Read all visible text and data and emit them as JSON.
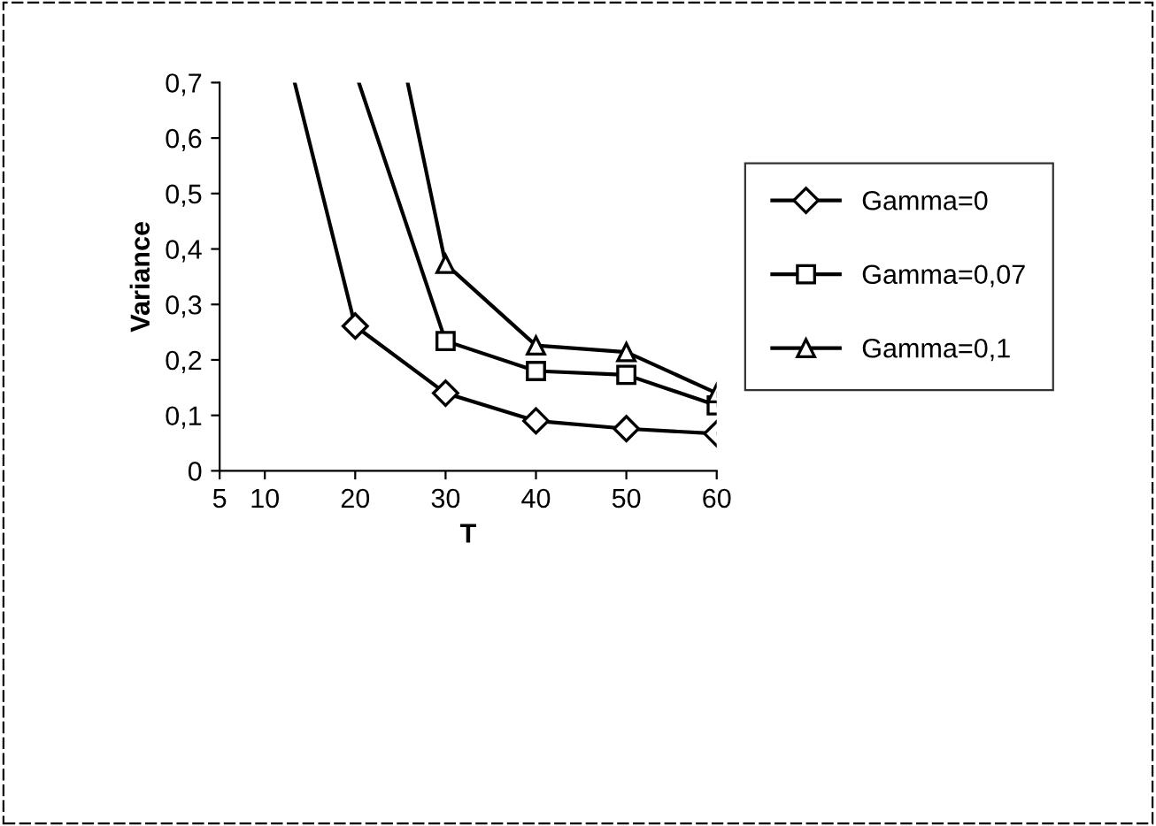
{
  "chart_data": {
    "type": "line",
    "xlabel": "T",
    "ylabel": "Variance",
    "xlim": [
      5,
      60
    ],
    "xticks": [
      5,
      10,
      20,
      30,
      40,
      50,
      60
    ],
    "ylim": [
      0,
      0.7
    ],
    "yticks": [
      {
        "value": 0,
        "label": "0"
      },
      {
        "value": 0.1,
        "label": "0,1"
      },
      {
        "value": 0.2,
        "label": "0,2"
      },
      {
        "value": 0.3,
        "label": "0,3"
      },
      {
        "value": 0.4,
        "label": "0,4"
      },
      {
        "value": 0.5,
        "label": "0,5"
      },
      {
        "value": 0.6,
        "label": "0,6"
      },
      {
        "value": 0.7,
        "label": "0,7"
      }
    ],
    "grid": false,
    "legend": "right",
    "line_style": "solid",
    "series": [
      {
        "name": "Gamma=0",
        "color": "#000000",
        "marker": "diamond",
        "x": [
          13.3,
          20,
          30,
          40,
          50,
          60
        ],
        "values": [
          0.7,
          0.261,
          0.14,
          0.09,
          0.076,
          0.067
        ]
      },
      {
        "name": "Gamma=0,07",
        "color": "#000000",
        "marker": "square",
        "x": [
          20.4,
          30,
          40,
          50,
          60
        ],
        "values": [
          0.7,
          0.234,
          0.18,
          0.173,
          0.118
        ]
      },
      {
        "name": "Gamma=0,1",
        "color": "#000000",
        "marker": "triangle",
        "x": [
          25.8,
          30,
          40,
          50,
          60
        ],
        "values": [
          0.7,
          0.373,
          0.226,
          0.214,
          0.14
        ]
      }
    ]
  }
}
